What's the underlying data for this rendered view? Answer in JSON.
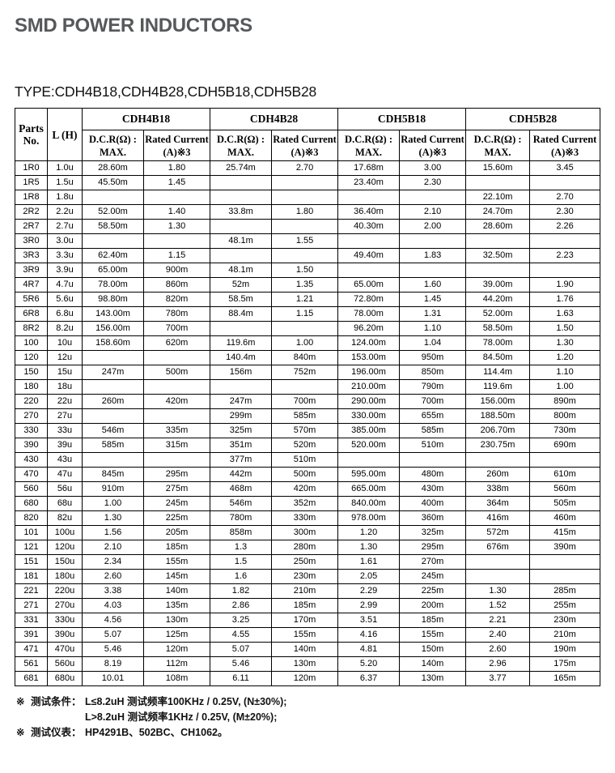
{
  "page": {
    "title": "SMD POWER INDUCTORS",
    "type_line": "TYPE:CDH4B18,CDH4B28,CDH5B18,CDH5B28"
  },
  "colors": {
    "title_gray": "#57585a",
    "table_border": "#000000",
    "text": "#000000"
  },
  "table": {
    "header": {
      "parts_label": "Parts\nNo.",
      "l_label": "L (H)",
      "types": [
        "CDH4B18",
        "CDH4B28",
        "CDH5B18",
        "CDH5B28"
      ],
      "dcr_label": "D.C.R(Ω) :\nMAX.",
      "rated_label": "Rated Current\n(A)※3"
    },
    "rows": [
      [
        "1R0",
        "1.0u",
        "28.60m",
        "1.80",
        "25.74m",
        "2.70",
        "17.68m",
        "3.00",
        "15.60m",
        "3.45"
      ],
      [
        "1R5",
        "1.5u",
        "45.50m",
        "1.45",
        "",
        "",
        "23.40m",
        "2.30",
        "",
        ""
      ],
      [
        "1R8",
        "1.8u",
        "",
        "",
        "",
        "",
        "",
        "",
        "22.10m",
        "2.70"
      ],
      [
        "2R2",
        "2.2u",
        "52.00m",
        "1.40",
        "33.8m",
        "1.80",
        "36.40m",
        "2.10",
        "24.70m",
        "2.30"
      ],
      [
        "2R7",
        "2.7u",
        "58.50m",
        "1.30",
        "",
        "",
        "40.30m",
        "2.00",
        "28.60m",
        "2.26"
      ],
      [
        "3R0",
        "3.0u",
        "",
        "",
        "48.1m",
        "1.55",
        "",
        "",
        "",
        ""
      ],
      [
        "3R3",
        "3.3u",
        "62.40m",
        "1.15",
        "",
        "",
        "49.40m",
        "1.83",
        "32.50m",
        "2.23"
      ],
      [
        "3R9",
        "3.9u",
        "65.00m",
        "900m",
        "48.1m",
        "1.50",
        "",
        "",
        "",
        ""
      ],
      [
        "4R7",
        "4.7u",
        "78.00m",
        "860m",
        "52m",
        "1.35",
        "65.00m",
        "1.60",
        "39.00m",
        "1.90"
      ],
      [
        "5R6",
        "5.6u",
        "98.80m",
        "820m",
        "58.5m",
        "1.21",
        "72.80m",
        "1.45",
        "44.20m",
        "1.76"
      ],
      [
        "6R8",
        "6.8u",
        "143.00m",
        "780m",
        "88.4m",
        "1.15",
        "78.00m",
        "1.31",
        "52.00m",
        "1.63"
      ],
      [
        "8R2",
        "8.2u",
        "156.00m",
        "700m",
        "",
        "",
        "96.20m",
        "1.10",
        "58.50m",
        "1.50"
      ],
      [
        "100",
        "10u",
        "158.60m",
        "620m",
        "119.6m",
        "1.00",
        "124.00m",
        "1.04",
        "78.00m",
        "1.30"
      ],
      [
        "120",
        "12u",
        "",
        "",
        "140.4m",
        "840m",
        "153.00m",
        "950m",
        "84.50m",
        "1.20"
      ],
      [
        "150",
        "15u",
        "247m",
        "500m",
        "156m",
        "752m",
        "196.00m",
        "850m",
        "114.4m",
        "1.10"
      ],
      [
        "180",
        "18u",
        "",
        "",
        "",
        "",
        "210.00m",
        "790m",
        "119.6m",
        "1.00"
      ],
      [
        "220",
        "22u",
        "260m",
        "420m",
        "247m",
        "700m",
        "290.00m",
        "700m",
        "156.00m",
        "890m"
      ],
      [
        "270",
        "27u",
        "",
        "",
        "299m",
        "585m",
        "330.00m",
        "655m",
        "188.50m",
        "800m"
      ],
      [
        "330",
        "33u",
        "546m",
        "335m",
        "325m",
        "570m",
        "385.00m",
        "585m",
        "206.70m",
        "730m"
      ],
      [
        "390",
        "39u",
        "585m",
        "315m",
        "351m",
        "520m",
        "520.00m",
        "510m",
        "230.75m",
        "690m"
      ],
      [
        "430",
        "43u",
        "",
        "",
        "377m",
        "510m",
        "",
        "",
        "",
        ""
      ],
      [
        "470",
        "47u",
        "845m",
        "295m",
        "442m",
        "500m",
        "595.00m",
        "480m",
        "260m",
        "610m"
      ],
      [
        "560",
        "56u",
        "910m",
        "275m",
        "468m",
        "420m",
        "665.00m",
        "430m",
        "338m",
        "560m"
      ],
      [
        "680",
        "68u",
        "1.00",
        "245m",
        "546m",
        "352m",
        "840.00m",
        "400m",
        "364m",
        "505m"
      ],
      [
        "820",
        "82u",
        "1.30",
        "225m",
        "780m",
        "330m",
        "978.00m",
        "360m",
        "416m",
        "460m"
      ],
      [
        "101",
        "100u",
        "1.56",
        "205m",
        "858m",
        "300m",
        "1.20",
        "325m",
        "572m",
        "415m"
      ],
      [
        "121",
        "120u",
        "2.10",
        "185m",
        "1.3",
        "280m",
        "1.30",
        "295m",
        "676m",
        "390m"
      ],
      [
        "151",
        "150u",
        "2.34",
        "155m",
        "1.5",
        "250m",
        "1.61",
        "270m",
        "",
        ""
      ],
      [
        "181",
        "180u",
        "2.60",
        "145m",
        "1.6",
        "230m",
        "2.05",
        "245m",
        "",
        ""
      ],
      [
        "221",
        "220u",
        "3.38",
        "140m",
        "1.82",
        "210m",
        "2.29",
        "225m",
        "1.30",
        "285m"
      ],
      [
        "271",
        "270u",
        "4.03",
        "135m",
        "2.86",
        "185m",
        "2.99",
        "200m",
        "1.52",
        "255m"
      ],
      [
        "331",
        "330u",
        "4.56",
        "130m",
        "3.25",
        "170m",
        "3.51",
        "185m",
        "2.21",
        "230m"
      ],
      [
        "391",
        "390u",
        "5.07",
        "125m",
        "4.55",
        "155m",
        "4.16",
        "155m",
        "2.40",
        "210m"
      ],
      [
        "471",
        "470u",
        "5.46",
        "120m",
        "5.07",
        "140m",
        "4.81",
        "150m",
        "2.60",
        "190m"
      ],
      [
        "561",
        "560u",
        "8.19",
        "112m",
        "5.46",
        "130m",
        "5.20",
        "140m",
        "2.96",
        "175m"
      ],
      [
        "681",
        "680u",
        "10.01",
        "108m",
        "6.11",
        "120m",
        "6.37",
        "130m",
        "3.77",
        "165m"
      ]
    ]
  },
  "notes": [
    {
      "marker": "※",
      "label": "测试条件：",
      "text": "L≤8.2uH 测试频率100KHz / 0.25V, (N±30%);"
    },
    {
      "marker": "",
      "label": "",
      "text": "L>8.2uH 测试频率1KHz / 0.25V, (M±20%);"
    },
    {
      "marker": "※",
      "label": "测试仪表：",
      "text": "HP4291B、502BC、CH1062。"
    }
  ]
}
